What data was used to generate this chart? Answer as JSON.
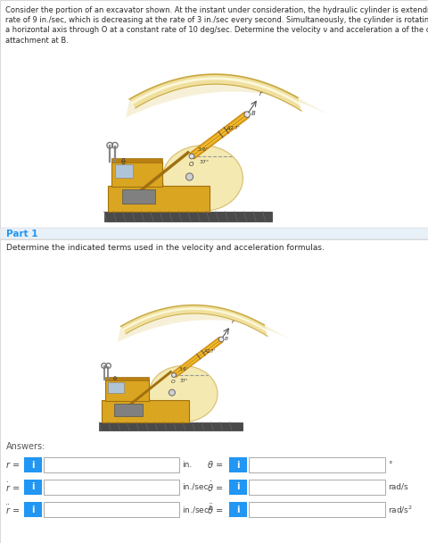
{
  "problem_lines": [
    "Consider the portion of an excavator shown. At the instant under consideration, the hydraulic cylinder is extending at a",
    "rate of 9 in./sec, which is decreasing at the rate of 3 in./sec every second. Simultaneously, the cylinder is rotating about",
    "a horizontal axis through O at a constant rate of 10 deg/sec. Determine the velocity ν and acceleration a of the clevis",
    "attachment at B."
  ],
  "part_label": "Part 1",
  "part_color": "#2196F3",
  "instruction": "Determine the indicated terms used in the velocity and acceleration formulas.",
  "answers_label": "Answers:",
  "bg_top": "#f0f0f0",
  "bg_bottom": "#f0f0f0",
  "white": "#ffffff",
  "border_color": "#cccccc",
  "part_bg": "#e8f0f8",
  "part_stripe": "#d8d8d8",
  "info_btn_color": "#2196F3",
  "text_dark": "#2a2a2a",
  "text_mid": "#555555",
  "gold_dark": "#C8880A",
  "gold_mid": "#E8A820",
  "gold_light": "#F5C840",
  "boom_outer": "#C8B870",
  "boom_mid": "#E8D890",
  "boom_light": "#F5EAB0",
  "track_color": "#5a5a5a",
  "body_gold": "#DAA520"
}
